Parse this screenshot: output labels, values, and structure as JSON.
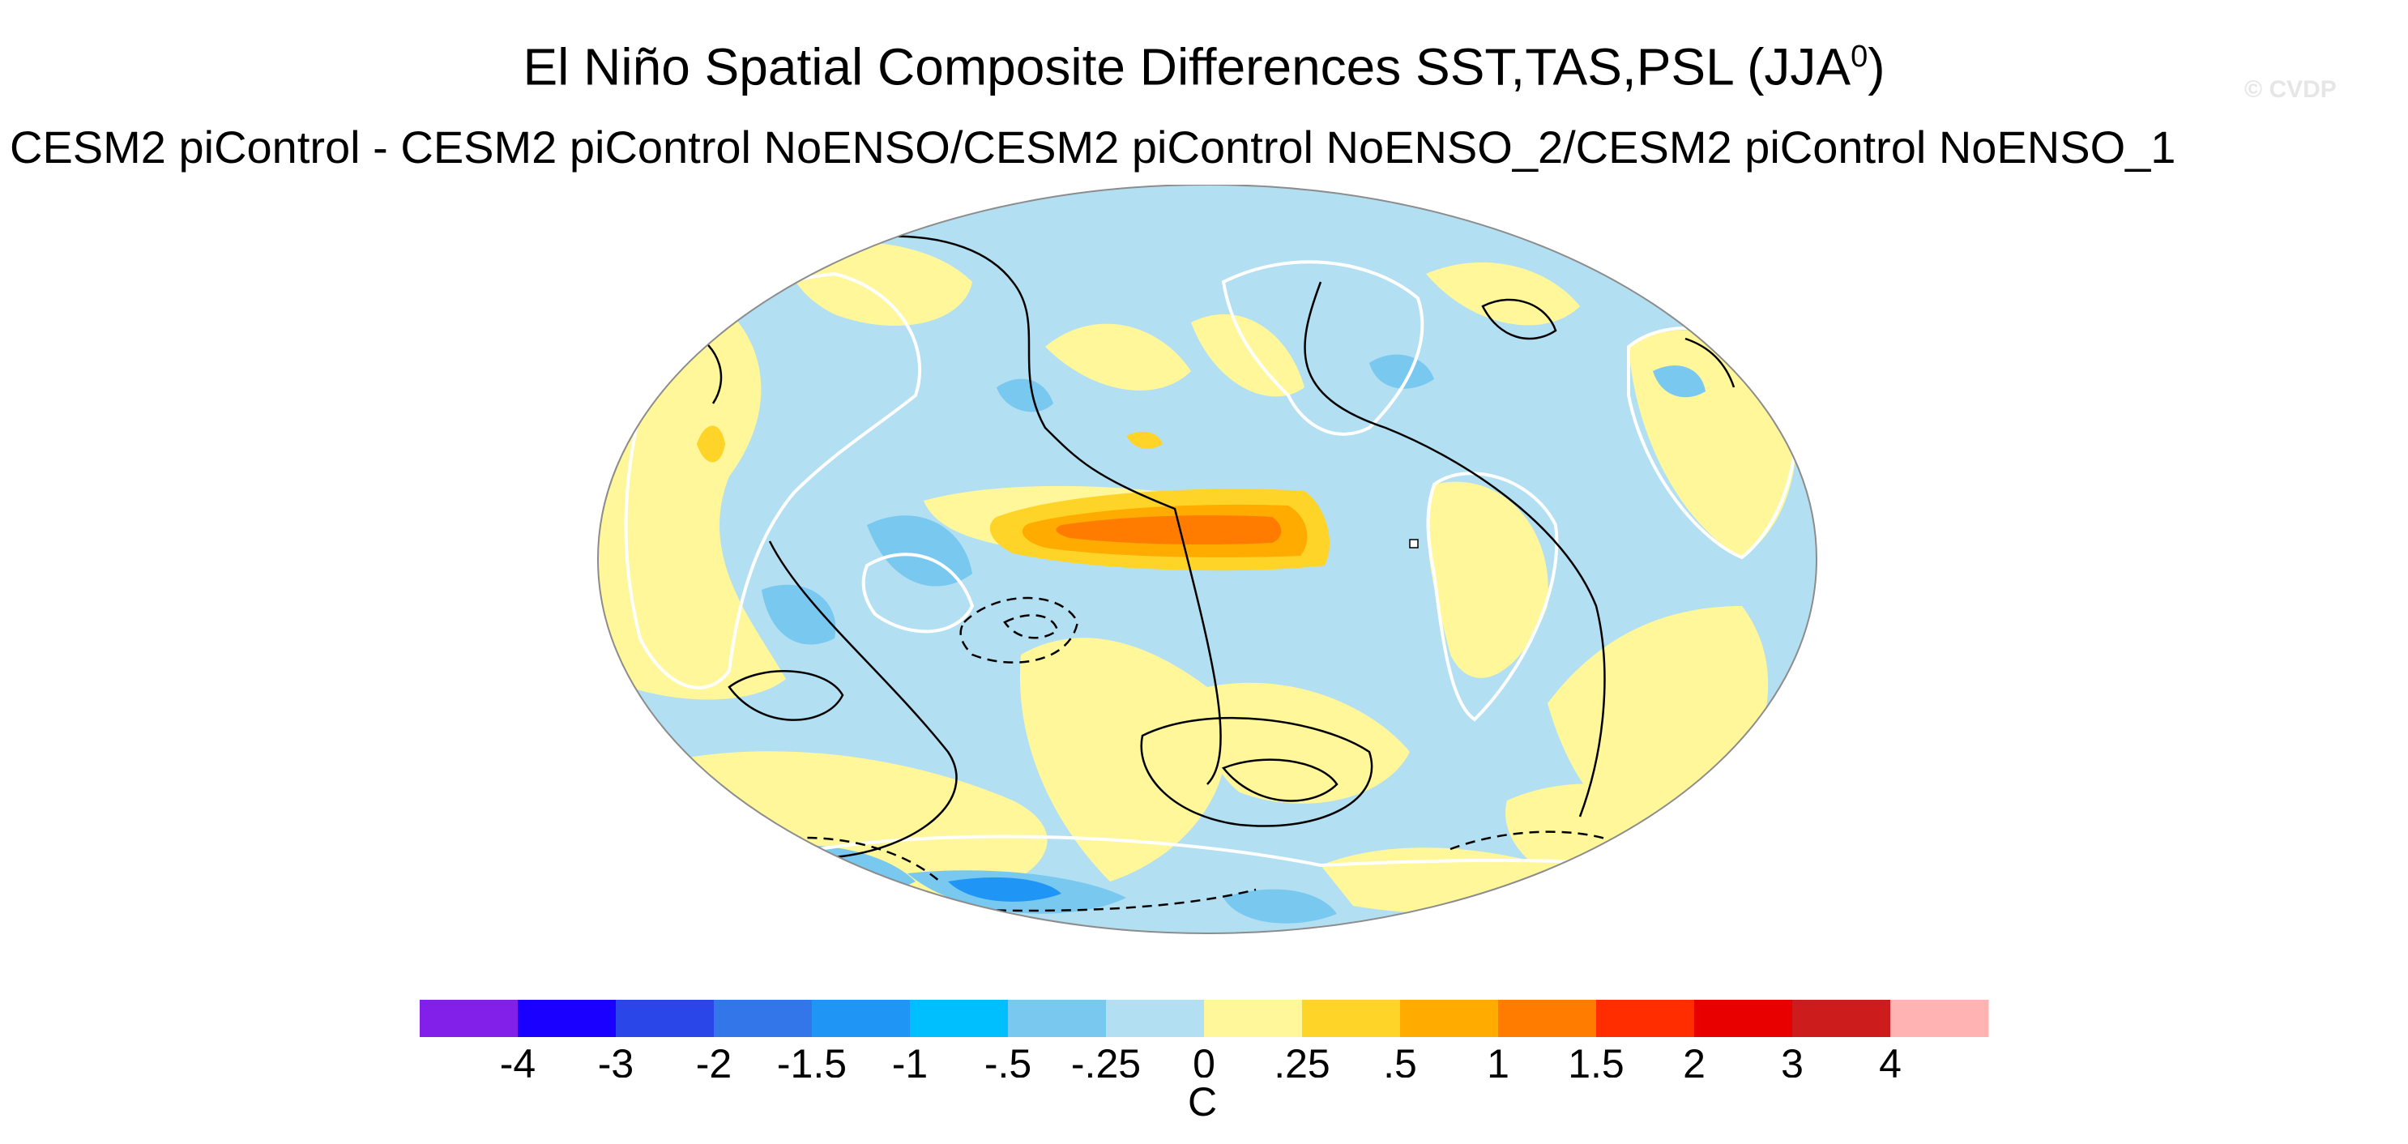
{
  "title": {
    "main": "El Niño Spatial Composite Differences SST,TAS,PSL (JJA",
    "superscript": "0",
    "suffix": ")"
  },
  "subtitle": "CESM2 piControl - CESM2 piControl NoENSO/CESM2 piControl NoENSO_2/CESM2 piControl NoENSO_1",
  "watermark": "© CVDP",
  "map": {
    "projection": "robinson",
    "fill_variables": "SST,TAS",
    "contour_variable": "PSL",
    "ocean_background_color": "#b3dff2",
    "coastline_color": "#ffffff",
    "contour_color": "#000000"
  },
  "colorbar": {
    "labels": [
      "-4",
      "-3",
      "-2",
      "-1.5",
      "-1",
      "-.5",
      "-.25",
      "0",
      ".25",
      ".5",
      "1",
      "1.5",
      "2",
      "3",
      "4"
    ],
    "colors": [
      "#8220ea",
      "#1900ff",
      "#2b46e8",
      "#3276e9",
      "#1f95f5",
      "#00bfff",
      "#78c8f0",
      "#b3dff2",
      "#fff79a",
      "#ffd429",
      "#ffab00",
      "#ff7c00",
      "#ff2d00",
      "#e80000",
      "#cc1c1c",
      "#ffb3b3"
    ],
    "units": "C"
  }
}
